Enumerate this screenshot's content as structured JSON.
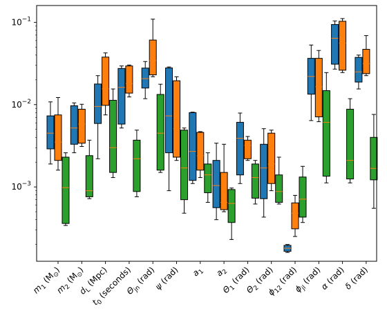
{
  "chart_data": {
    "type": "box",
    "title": "",
    "xlabel": "",
    "ylabel": "",
    "yscale": "log",
    "ylim": [
      0.000125,
      0.16
    ],
    "y_ticks": [
      {
        "value": 0.001,
        "base": "10",
        "exp": "−3"
      },
      {
        "value": 0.01,
        "base": "10",
        "exp": "−2"
      },
      {
        "value": 0.1,
        "base": "10",
        "exp": "−1"
      }
    ],
    "categories": [
      {
        "sym": "m",
        "sub": "1",
        "unit": " (M",
        "unitsub": "⊙",
        "tail": ")"
      },
      {
        "sym": "m",
        "sub": "2",
        "unit": " (M",
        "unitsub": "⊙",
        "tail": ")"
      },
      {
        "sym": "d",
        "sub": "L",
        "unit": " (Mpc)",
        "unitsub": "",
        "tail": ""
      },
      {
        "sym": "t",
        "sub": "0",
        "unit": " (seconds)",
        "unitsub": "",
        "tail": ""
      },
      {
        "sym": "Θ",
        "sub": "jn",
        "unit": " (rad)",
        "unitsub": "",
        "tail": ""
      },
      {
        "sym": "ψ",
        "sub": "",
        "unit": " (rad)",
        "unitsub": "",
        "tail": ""
      },
      {
        "sym": "a",
        "sub": "1",
        "unit": "",
        "unitsub": "",
        "tail": ""
      },
      {
        "sym": "a",
        "sub": "2",
        "unit": "",
        "unitsub": "",
        "tail": ""
      },
      {
        "sym": "Θ",
        "sub": "1",
        "unit": " (rad)",
        "unitsub": "",
        "tail": ""
      },
      {
        "sym": "Θ",
        "sub": "2",
        "unit": " (rad)",
        "unitsub": "",
        "tail": ""
      },
      {
        "sym": "ϕ",
        "sub": "12",
        "unit": " (rad)",
        "unitsub": "",
        "tail": ""
      },
      {
        "sym": "ϕ",
        "sub": "jl",
        "unit": " (rad)",
        "unitsub": "",
        "tail": ""
      },
      {
        "sym": "α",
        "sub": "",
        "unit": " (rad)",
        "unitsub": "",
        "tail": ""
      },
      {
        "sym": "δ",
        "sub": "",
        "unit": " (rad)",
        "unitsub": "",
        "tail": ""
      }
    ],
    "series": [
      {
        "color": "#1f77b4",
        "boxes": [
          {
            "wl": 0.0019,
            "q1": 0.0029,
            "med": 0.0045,
            "q3": 0.0073,
            "wh": 0.0108
          },
          {
            "wl": 0.0026,
            "q1": 0.0033,
            "med": 0.0052,
            "q3": 0.0097,
            "wh": 0.0105
          },
          {
            "wl": 0.0022,
            "q1": 0.0059,
            "med": 0.0095,
            "q3": 0.0178,
            "wh": 0.0225
          },
          {
            "wl": 0.0052,
            "q1": 0.0058,
            "med": 0.0162,
            "q3": 0.0275,
            "wh": 0.0295
          },
          {
            "wl": 0.0118,
            "q1": 0.0159,
            "med": 0.0207,
            "q3": 0.0278,
            "wh": 0.0334
          },
          {
            "wl": 0.0009,
            "q1": 0.0026,
            "med": 0.0073,
            "q3": 0.0279,
            "wh": 0.0287
          },
          {
            "wl": 0.0011,
            "q1": 0.0012,
            "med": 0.0027,
            "q3": 0.008,
            "wh": 0.0081
          },
          {
            "wl": 0.0004,
            "q1": 0.00056,
            "med": 0.00104,
            "q3": 0.0021,
            "wh": 0.0034
          },
          {
            "wl": 0.0011,
            "q1": 0.0014,
            "med": 0.0039,
            "q3": 0.0061,
            "wh": 0.0079
          },
          {
            "wl": 0.00043,
            "q1": 0.00072,
            "med": 0.0017,
            "q3": 0.0033,
            "wh": 0.0051
          },
          {
            "wl": 0.00016,
            "q1": 0.000165,
            "med": 0.00018,
            "q3": 0.000195,
            "wh": 0.0002
          },
          {
            "wl": 0.0064,
            "q1": 0.0134,
            "med": 0.022,
            "q3": 0.0365,
            "wh": 0.053
          },
          {
            "wl": 0.027,
            "q1": 0.031,
            "med": 0.064,
            "q3": 0.094,
            "wh": 0.104
          },
          {
            "wl": 0.0155,
            "q1": 0.0188,
            "med": 0.025,
            "q3": 0.0375,
            "wh": 0.04
          }
        ]
      },
      {
        "color": "#ff7f0e",
        "boxes": [
          {
            "wl": 0.0016,
            "q1": 0.0021,
            "med": 0.0035,
            "q3": 0.0075,
            "wh": 0.0122
          },
          {
            "wl": 0.0031,
            "q1": 0.0034,
            "med": 0.0058,
            "q3": 0.0088,
            "wh": 0.0101
          },
          {
            "wl": 0.0075,
            "q1": 0.0098,
            "med": 0.0156,
            "q3": 0.0378,
            "wh": 0.0425
          },
          {
            "wl": 0.0124,
            "q1": 0.0138,
            "med": 0.018,
            "q3": 0.0295,
            "wh": 0.0303
          },
          {
            "wl": 0.0218,
            "q1": 0.023,
            "med": 0.0343,
            "q3": 0.0609,
            "wh": 0.1092
          },
          {
            "wl": 0.0021,
            "q1": 0.0023,
            "med": 0.0051,
            "q3": 0.0195,
            "wh": 0.0218
          },
          {
            "wl": 0.0013,
            "q1": 0.0016,
            "med": 0.0024,
            "q3": 0.0046,
            "wh": 0.0047
          },
          {
            "wl": 0.0005,
            "q1": 0.00053,
            "med": 0.00065,
            "q3": 0.0015,
            "wh": 0.0033
          },
          {
            "wl": 0.0021,
            "q1": 0.0022,
            "med": 0.0032,
            "q3": 0.0037,
            "wh": 0.0041
          },
          {
            "wl": 0.0009,
            "q1": 0.0011,
            "med": 0.0019,
            "q3": 0.0045,
            "wh": 0.0049
          },
          {
            "wl": 0.00025,
            "q1": 0.00031,
            "med": 0.00048,
            "q3": 0.00064,
            "wh": 0.00079
          },
          {
            "wl": 0.0062,
            "q1": 0.0071,
            "med": 0.0165,
            "q3": 0.0365,
            "wh": 0.0455
          },
          {
            "wl": 0.0245,
            "q1": 0.0262,
            "med": 0.056,
            "q3": 0.103,
            "wh": 0.111
          },
          {
            "wl": 0.0225,
            "q1": 0.0238,
            "med": 0.0315,
            "q3": 0.047,
            "wh": 0.069
          }
        ]
      },
      {
        "color": "#2ca02c",
        "boxes": [
          {
            "wl": 0.00034,
            "q1": 0.00036,
            "med": 0.00098,
            "q3": 0.0023,
            "wh": 0.0026
          },
          {
            "wl": 0.00072,
            "q1": 0.00076,
            "med": 0.0009,
            "q3": 0.0024,
            "wh": 0.0037
          },
          {
            "wl": 0.0013,
            "q1": 0.0015,
            "med": 0.003,
            "q3": 0.0113,
            "wh": 0.0155
          },
          {
            "wl": 0.00076,
            "q1": 0.00088,
            "med": 0.0022,
            "q3": 0.0037,
            "wh": 0.0049
          },
          {
            "wl": 0.0015,
            "q1": 0.0016,
            "med": 0.0045,
            "q3": 0.0133,
            "wh": 0.0177
          },
          {
            "wl": 0.00048,
            "q1": 0.0007,
            "med": 0.0017,
            "q3": 0.0049,
            "wh": 0.0052
          },
          {
            "wl": 0.00065,
            "q1": 0.00085,
            "med": 0.0014,
            "q3": 0.0019,
            "wh": 0.0026
          },
          {
            "wl": 0.00023,
            "q1": 0.00037,
            "med": 0.00063,
            "q3": 0.00093,
            "wh": 0.00097
          },
          {
            "wl": 0.00062,
            "q1": 0.00073,
            "med": 0.0013,
            "q3": 0.0019,
            "wh": 0.0021
          },
          {
            "wl": 0.00062,
            "q1": 0.00065,
            "med": 0.00088,
            "q3": 0.0014,
            "wh": 0.0023
          },
          {
            "wl": 0.00037,
            "q1": 0.00043,
            "med": 0.00071,
            "q3": 0.00132,
            "wh": 0.00178
          },
          {
            "wl": 0.00112,
            "q1": 0.00135,
            "med": 0.0061,
            "q3": 0.0148,
            "wh": 0.0245
          },
          {
            "wl": 0.00112,
            "q1": 0.00125,
            "med": 0.0021,
            "q3": 0.0088,
            "wh": 0.0118
          },
          {
            "wl": 0.00055,
            "q1": 0.00122,
            "med": 0.00168,
            "q3": 0.004,
            "wh": 0.0076
          }
        ]
      }
    ],
    "legend": "none",
    "grid": false
  }
}
